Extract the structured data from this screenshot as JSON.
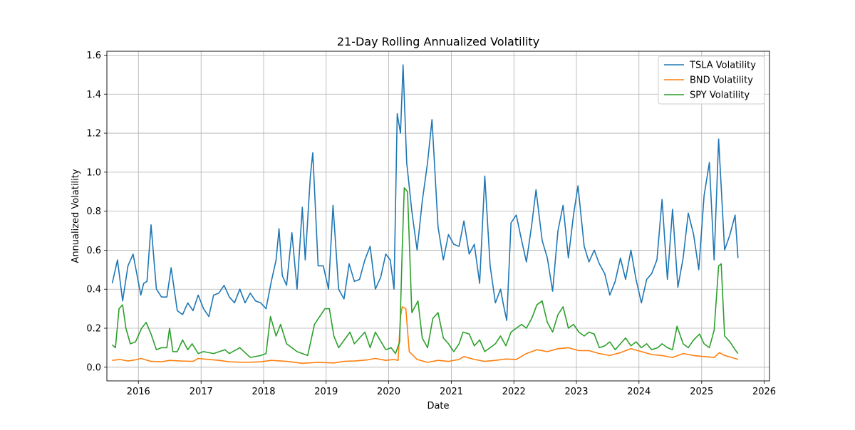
{
  "chart_data": {
    "type": "line",
    "title": "21-Day Rolling Annualized Volatility",
    "xlabel": "Date",
    "ylabel": "Annualized Volatility",
    "xlim": [
      "2015-07-01",
      "2026-02-01"
    ],
    "ylim": [
      -0.07,
      1.62
    ],
    "x_ticks": [
      "2016",
      "2017",
      "2018",
      "2019",
      "2020",
      "2021",
      "2022",
      "2023",
      "2024",
      "2025",
      "2026"
    ],
    "y_ticks": [
      "0.0",
      "0.2",
      "0.4",
      "0.6",
      "0.8",
      "1.0",
      "1.2",
      "1.4",
      "1.6"
    ],
    "grid": true,
    "legend_position": "top-right",
    "series": [
      {
        "name": "TSLA Volatility",
        "color": "#1f77b4",
        "x": [
          "2015-08-01",
          "2015-09-01",
          "2015-10-01",
          "2015-11-01",
          "2015-12-01",
          "2016-01-15",
          "2016-02-01",
          "2016-02-20",
          "2016-03-15",
          "2016-04-15",
          "2016-05-15",
          "2016-06-15",
          "2016-07-10",
          "2016-08-15",
          "2016-09-15",
          "2016-10-15",
          "2016-11-15",
          "2016-12-15",
          "2017-01-15",
          "2017-02-15",
          "2017-03-15",
          "2017-04-15",
          "2017-05-15",
          "2017-06-15",
          "2017-07-15",
          "2017-08-15",
          "2017-09-15",
          "2017-10-15",
          "2017-11-15",
          "2017-12-15",
          "2018-01-15",
          "2018-02-15",
          "2018-03-15",
          "2018-04-01",
          "2018-04-20",
          "2018-05-15",
          "2018-06-15",
          "2018-07-15",
          "2018-08-15",
          "2018-09-01",
          "2018-10-01",
          "2018-10-15",
          "2018-11-15",
          "2018-12-15",
          "2019-01-15",
          "2019-02-10",
          "2019-03-15",
          "2019-04-15",
          "2019-05-15",
          "2019-06-15",
          "2019-07-15",
          "2019-08-15",
          "2019-09-15",
          "2019-10-15",
          "2019-11-15",
          "2019-12-15",
          "2020-01-10",
          "2020-02-01",
          "2020-02-20",
          "2020-03-10",
          "2020-03-25",
          "2020-04-15",
          "2020-05-15",
          "2020-06-15",
          "2020-07-15",
          "2020-08-15",
          "2020-09-10",
          "2020-10-15",
          "2020-11-15",
          "2020-12-15",
          "2021-01-15",
          "2021-02-15",
          "2021-03-15",
          "2021-04-15",
          "2021-05-15",
          "2021-06-15",
          "2021-07-15",
          "2021-08-15",
          "2021-09-15",
          "2021-10-15",
          "2021-11-01",
          "2021-11-20",
          "2021-12-15",
          "2022-01-15",
          "2022-02-15",
          "2022-03-15",
          "2022-04-15",
          "2022-05-10",
          "2022-06-15",
          "2022-07-15",
          "2022-08-15",
          "2022-09-15",
          "2022-10-15",
          "2022-11-15",
          "2022-12-15",
          "2023-01-10",
          "2023-02-15",
          "2023-03-15",
          "2023-04-15",
          "2023-05-15",
          "2023-06-15",
          "2023-07-15",
          "2023-08-15",
          "2023-09-15",
          "2023-10-15",
          "2023-11-15",
          "2023-12-15",
          "2024-01-15",
          "2024-02-15",
          "2024-03-15",
          "2024-04-15",
          "2024-05-15",
          "2024-06-15",
          "2024-07-15",
          "2024-08-15",
          "2024-09-15",
          "2024-10-15",
          "2024-11-15",
          "2024-12-15",
          "2025-01-15",
          "2025-02-15",
          "2025-03-15",
          "2025-04-10",
          "2025-05-15",
          "2025-06-15",
          "2025-07-15",
          "2025-08-01"
        ],
        "values": [
          0.43,
          0.55,
          0.34,
          0.52,
          0.58,
          0.37,
          0.43,
          0.44,
          0.73,
          0.4,
          0.36,
          0.36,
          0.51,
          0.29,
          0.27,
          0.33,
          0.29,
          0.37,
          0.3,
          0.26,
          0.37,
          0.38,
          0.42,
          0.36,
          0.33,
          0.4,
          0.33,
          0.38,
          0.34,
          0.33,
          0.3,
          0.44,
          0.55,
          0.71,
          0.47,
          0.42,
          0.69,
          0.4,
          0.82,
          0.55,
          0.98,
          1.1,
          0.52,
          0.52,
          0.4,
          0.83,
          0.4,
          0.35,
          0.53,
          0.44,
          0.45,
          0.55,
          0.62,
          0.4,
          0.46,
          0.58,
          0.55,
          0.4,
          1.3,
          1.2,
          1.55,
          1.05,
          0.8,
          0.6,
          0.85,
          1.05,
          1.27,
          0.72,
          0.55,
          0.68,
          0.63,
          0.62,
          0.75,
          0.58,
          0.63,
          0.43,
          0.98,
          0.52,
          0.33,
          0.4,
          0.32,
          0.24,
          0.74,
          0.78,
          0.65,
          0.54,
          0.73,
          0.91,
          0.65,
          0.56,
          0.39,
          0.7,
          0.83,
          0.56,
          0.78,
          0.93,
          0.62,
          0.54,
          0.6,
          0.53,
          0.48,
          0.37,
          0.44,
          0.56,
          0.45,
          0.6,
          0.45,
          0.33,
          0.45,
          0.48,
          0.55,
          0.86,
          0.45,
          0.81,
          0.41,
          0.56,
          0.79,
          0.68,
          0.5,
          0.88,
          1.05,
          0.55,
          1.17,
          0.6,
          0.68,
          0.78,
          0.56
        ]
      },
      {
        "name": "BND Volatility",
        "color": "#ff7f0e",
        "x": [
          "2015-08-01",
          "2015-09-15",
          "2015-11-01",
          "2015-12-15",
          "2016-01-15",
          "2016-03-15",
          "2016-05-15",
          "2016-07-01",
          "2016-09-01",
          "2016-11-15",
          "2016-12-15",
          "2017-02-15",
          "2017-04-15",
          "2017-06-15",
          "2017-09-15",
          "2017-12-15",
          "2018-02-15",
          "2018-05-15",
          "2018-08-15",
          "2018-11-15",
          "2019-02-15",
          "2019-04-15",
          "2019-06-15",
          "2019-09-01",
          "2019-10-15",
          "2019-12-15",
          "2020-02-01",
          "2020-02-25",
          "2020-03-10",
          "2020-03-20",
          "2020-04-10",
          "2020-04-30",
          "2020-06-15",
          "2020-08-15",
          "2020-10-15",
          "2020-12-15",
          "2021-02-15",
          "2021-03-15",
          "2021-05-15",
          "2021-07-15",
          "2021-09-15",
          "2021-11-15",
          "2022-01-15",
          "2022-03-15",
          "2022-05-15",
          "2022-07-15",
          "2022-09-15",
          "2022-11-15",
          "2023-01-15",
          "2023-03-15",
          "2023-05-15",
          "2023-07-15",
          "2023-09-15",
          "2023-11-15",
          "2024-01-15",
          "2024-03-15",
          "2024-05-15",
          "2024-07-15",
          "2024-09-15",
          "2024-11-15",
          "2025-01-15",
          "2025-03-15",
          "2025-04-15",
          "2025-05-15",
          "2025-07-15",
          "2025-08-01"
        ],
        "values": [
          0.035,
          0.04,
          0.032,
          0.038,
          0.045,
          0.03,
          0.028,
          0.035,
          0.032,
          0.03,
          0.045,
          0.04,
          0.035,
          0.028,
          0.025,
          0.028,
          0.035,
          0.03,
          0.02,
          0.025,
          0.022,
          0.03,
          0.032,
          0.038,
          0.045,
          0.035,
          0.04,
          0.035,
          0.26,
          0.31,
          0.3,
          0.08,
          0.04,
          0.025,
          0.035,
          0.03,
          0.04,
          0.055,
          0.04,
          0.03,
          0.035,
          0.042,
          0.04,
          0.07,
          0.09,
          0.08,
          0.095,
          0.1,
          0.085,
          0.085,
          0.07,
          0.06,
          0.075,
          0.095,
          0.08,
          0.065,
          0.06,
          0.05,
          0.07,
          0.06,
          0.055,
          0.05,
          0.075,
          0.06,
          0.045,
          0.04
        ]
      },
      {
        "name": "SPY Volatility",
        "color": "#2ca02c",
        "x": [
          "2015-08-01",
          "2015-08-20",
          "2015-09-10",
          "2015-10-01",
          "2015-10-20",
          "2015-11-15",
          "2015-12-15",
          "2016-01-20",
          "2016-02-15",
          "2016-03-15",
          "2016-04-15",
          "2016-05-15",
          "2016-06-15",
          "2016-07-01",
          "2016-07-20",
          "2016-08-15",
          "2016-09-15",
          "2016-10-15",
          "2016-11-10",
          "2016-12-15",
          "2017-01-15",
          "2017-03-15",
          "2017-05-20",
          "2017-06-15",
          "2017-08-15",
          "2017-10-15",
          "2017-12-15",
          "2018-01-15",
          "2018-02-10",
          "2018-03-15",
          "2018-04-10",
          "2018-05-15",
          "2018-07-15",
          "2018-09-15",
          "2018-10-25",
          "2018-12-25",
          "2019-01-20",
          "2019-02-15",
          "2019-03-15",
          "2019-05-20",
          "2019-06-15",
          "2019-08-15",
          "2019-09-15",
          "2019-10-15",
          "2019-12-15",
          "2020-01-15",
          "2020-02-10",
          "2020-03-05",
          "2020-03-20",
          "2020-04-01",
          "2020-04-20",
          "2020-05-15",
          "2020-06-20",
          "2020-07-15",
          "2020-08-15",
          "2020-09-15",
          "2020-10-15",
          "2020-11-15",
          "2020-12-15",
          "2021-01-15",
          "2021-02-15",
          "2021-03-10",
          "2021-04-15",
          "2021-05-15",
          "2021-06-15",
          "2021-07-15",
          "2021-08-15",
          "2021-09-15",
          "2021-10-15",
          "2021-11-15",
          "2021-12-15",
          "2022-01-15",
          "2022-02-15",
          "2022-03-15",
          "2022-04-15",
          "2022-05-15",
          "2022-06-15",
          "2022-07-15",
          "2022-08-15",
          "2022-09-15",
          "2022-10-15",
          "2022-11-15",
          "2022-12-15",
          "2023-01-15",
          "2023-02-15",
          "2023-03-15",
          "2023-04-15",
          "2023-05-15",
          "2023-06-15",
          "2023-07-15",
          "2023-08-15",
          "2023-09-15",
          "2023-10-15",
          "2023-11-15",
          "2023-12-15",
          "2024-01-15",
          "2024-02-15",
          "2024-03-15",
          "2024-04-20",
          "2024-05-15",
          "2024-06-15",
          "2024-07-15",
          "2024-08-10",
          "2024-09-15",
          "2024-10-15",
          "2024-11-15",
          "2024-12-20",
          "2025-01-15",
          "2025-02-15",
          "2025-03-15",
          "2025-04-10",
          "2025-04-25",
          "2025-05-15",
          "2025-06-15",
          "2025-07-15",
          "2025-08-01"
        ],
        "values": [
          0.115,
          0.1,
          0.3,
          0.32,
          0.2,
          0.12,
          0.13,
          0.2,
          0.23,
          0.17,
          0.09,
          0.1,
          0.1,
          0.2,
          0.08,
          0.08,
          0.14,
          0.09,
          0.12,
          0.07,
          0.08,
          0.07,
          0.09,
          0.07,
          0.1,
          0.05,
          0.06,
          0.07,
          0.26,
          0.16,
          0.22,
          0.12,
          0.08,
          0.06,
          0.22,
          0.3,
          0.3,
          0.16,
          0.1,
          0.18,
          0.12,
          0.18,
          0.1,
          0.18,
          0.09,
          0.1,
          0.07,
          0.13,
          0.6,
          0.92,
          0.9,
          0.28,
          0.34,
          0.15,
          0.1,
          0.25,
          0.28,
          0.15,
          0.12,
          0.08,
          0.12,
          0.18,
          0.17,
          0.11,
          0.14,
          0.08,
          0.1,
          0.12,
          0.16,
          0.11,
          0.18,
          0.2,
          0.22,
          0.2,
          0.25,
          0.32,
          0.34,
          0.23,
          0.18,
          0.27,
          0.31,
          0.2,
          0.22,
          0.18,
          0.16,
          0.18,
          0.17,
          0.1,
          0.11,
          0.13,
          0.09,
          0.12,
          0.15,
          0.11,
          0.13,
          0.1,
          0.12,
          0.09,
          0.1,
          0.12,
          0.1,
          0.09,
          0.21,
          0.12,
          0.1,
          0.14,
          0.17,
          0.12,
          0.1,
          0.19,
          0.52,
          0.53,
          0.16,
          0.13,
          0.09,
          0.07
        ]
      }
    ]
  }
}
